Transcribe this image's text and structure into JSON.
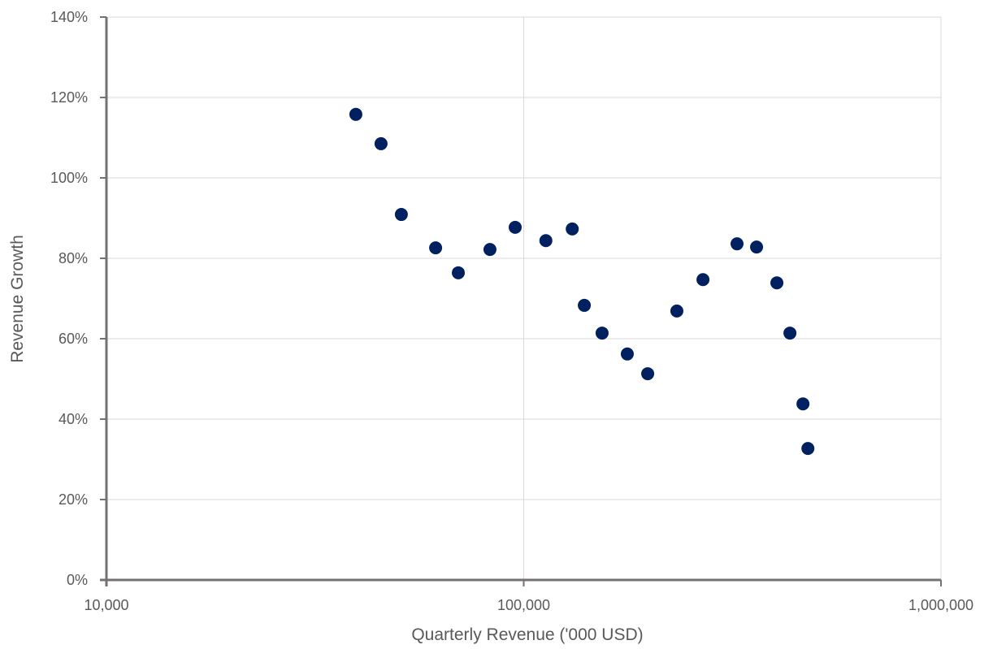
{
  "chart_data": {
    "type": "scatter",
    "title": "",
    "xlabel": "Quarterly Revenue ('000 USD)",
    "ylabel": "Revenue Growth",
    "x_scale": "log",
    "xlim": [
      10000,
      1000000
    ],
    "ylim": [
      0,
      1.4
    ],
    "x_ticks": [
      10000,
      100000,
      1000000
    ],
    "x_tick_labels": [
      "10,000",
      "100,000",
      "1,000,000"
    ],
    "y_ticks": [
      0,
      0.2,
      0.4,
      0.6,
      0.8,
      1.0,
      1.2,
      1.4
    ],
    "y_tick_labels": [
      "0%",
      "20%",
      "40%",
      "60%",
      "80%",
      "100%",
      "120%",
      "140%"
    ],
    "grid": true,
    "legend": null,
    "marker_color": "#002060",
    "series": [
      {
        "name": "Revenue Growth",
        "points": [
          {
            "x": 39600,
            "y": 1.158
          },
          {
            "x": 45500,
            "y": 1.085
          },
          {
            "x": 50900,
            "y": 0.909
          },
          {
            "x": 61500,
            "y": 0.826
          },
          {
            "x": 69700,
            "y": 0.764
          },
          {
            "x": 83000,
            "y": 0.822
          },
          {
            "x": 95400,
            "y": 0.877
          },
          {
            "x": 113000,
            "y": 0.844
          },
          {
            "x": 130700,
            "y": 0.873
          },
          {
            "x": 139700,
            "y": 0.683
          },
          {
            "x": 154100,
            "y": 0.614
          },
          {
            "x": 177100,
            "y": 0.562
          },
          {
            "x": 198200,
            "y": 0.513
          },
          {
            "x": 232800,
            "y": 0.669
          },
          {
            "x": 268900,
            "y": 0.747
          },
          {
            "x": 324500,
            "y": 0.836
          },
          {
            "x": 361400,
            "y": 0.828
          },
          {
            "x": 404300,
            "y": 0.739
          },
          {
            "x": 434500,
            "y": 0.614
          },
          {
            "x": 466900,
            "y": 0.438
          },
          {
            "x": 479800,
            "y": 0.327
          }
        ]
      }
    ]
  }
}
